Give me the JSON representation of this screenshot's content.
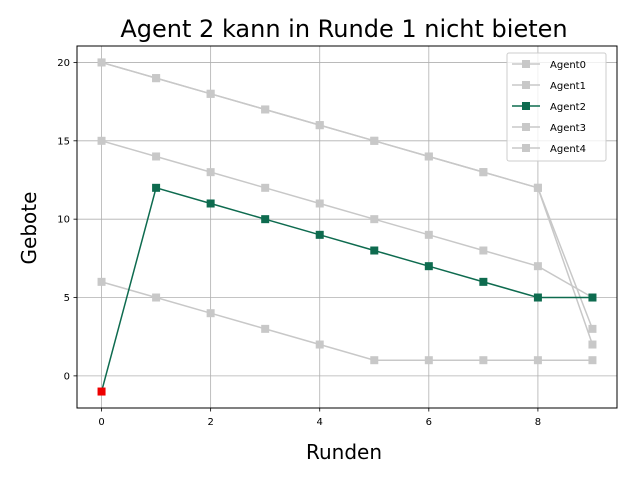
{
  "chart_data": {
    "type": "line",
    "title": "Agent 2 kann in Runde 1 nicht bieten",
    "xlabel": "Runden",
    "ylabel": "Gebote",
    "xlim": [
      -0.45,
      9.45
    ],
    "ylim": [
      -2.05,
      21.05
    ],
    "xticks": [
      0,
      2,
      4,
      6,
      8
    ],
    "yticks": [
      0,
      5,
      10,
      15,
      20
    ],
    "grid": true,
    "legend_position": "top-right",
    "x": [
      0,
      1,
      2,
      3,
      4,
      5,
      6,
      7,
      8,
      9
    ],
    "series": [
      {
        "name": "Agent0",
        "color": "#c8c8c8",
        "values": [
          20,
          19,
          18,
          17,
          16,
          15,
          14,
          13,
          12,
          2
        ]
      },
      {
        "name": "Agent1",
        "color": "#c8c8c8",
        "values": [
          15,
          14,
          13,
          12,
          11,
          10,
          9,
          8,
          7,
          5
        ]
      },
      {
        "name": "Agent2",
        "color": "#0e6b4f",
        "values": [
          -1,
          12,
          11,
          10,
          9,
          8,
          7,
          6,
          5,
          5
        ]
      },
      {
        "name": "Agent3",
        "color": "#c8c8c8",
        "values": [
          6,
          5,
          4,
          3,
          2,
          1,
          1,
          1,
          1,
          1
        ]
      },
      {
        "name": "Agent4",
        "color": "#c8c8c8",
        "values": [
          20,
          19,
          18,
          17,
          16,
          15,
          14,
          13,
          12,
          3
        ]
      }
    ],
    "highlight": {
      "series": "Agent2",
      "x": 0,
      "y": -1,
      "color": "#ee0000"
    }
  }
}
